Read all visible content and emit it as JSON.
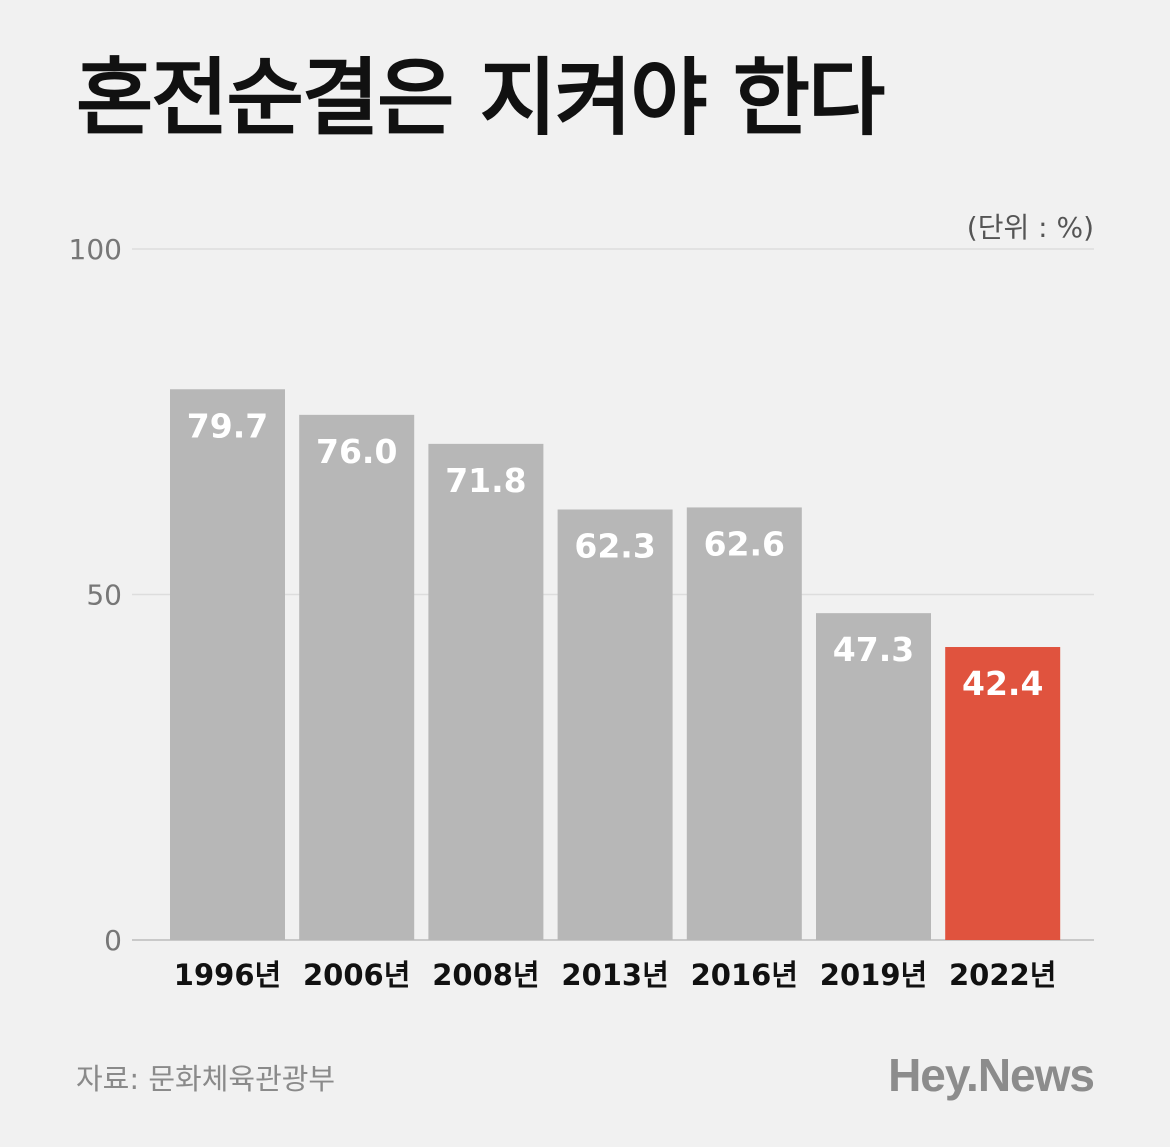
{
  "title": "혼전순결은 지켜야 한다",
  "unit_label": "(단위 : %)",
  "source": "자료: 문화체육관광부",
  "brand": "Hey.News",
  "colors": {
    "bar": "#b7b7b7",
    "highlight": "#e0533e",
    "grid": "#dddddd",
    "axis": "#c9c9c9"
  },
  "chart_data": {
    "type": "bar",
    "categories": [
      "1996년",
      "2006년",
      "2008년",
      "2013년",
      "2016년",
      "2019년",
      "2022년"
    ],
    "values": [
      79.7,
      76.0,
      71.8,
      62.3,
      62.6,
      47.3,
      42.4
    ],
    "value_labels": [
      "79.7",
      "76.0",
      "71.8",
      "62.3",
      "62.6",
      "47.3",
      "42.4"
    ],
    "yticks": [
      "0",
      "50",
      "100"
    ],
    "ylim": [
      0,
      100
    ],
    "highlight_category": "2022년",
    "grid": true
  }
}
